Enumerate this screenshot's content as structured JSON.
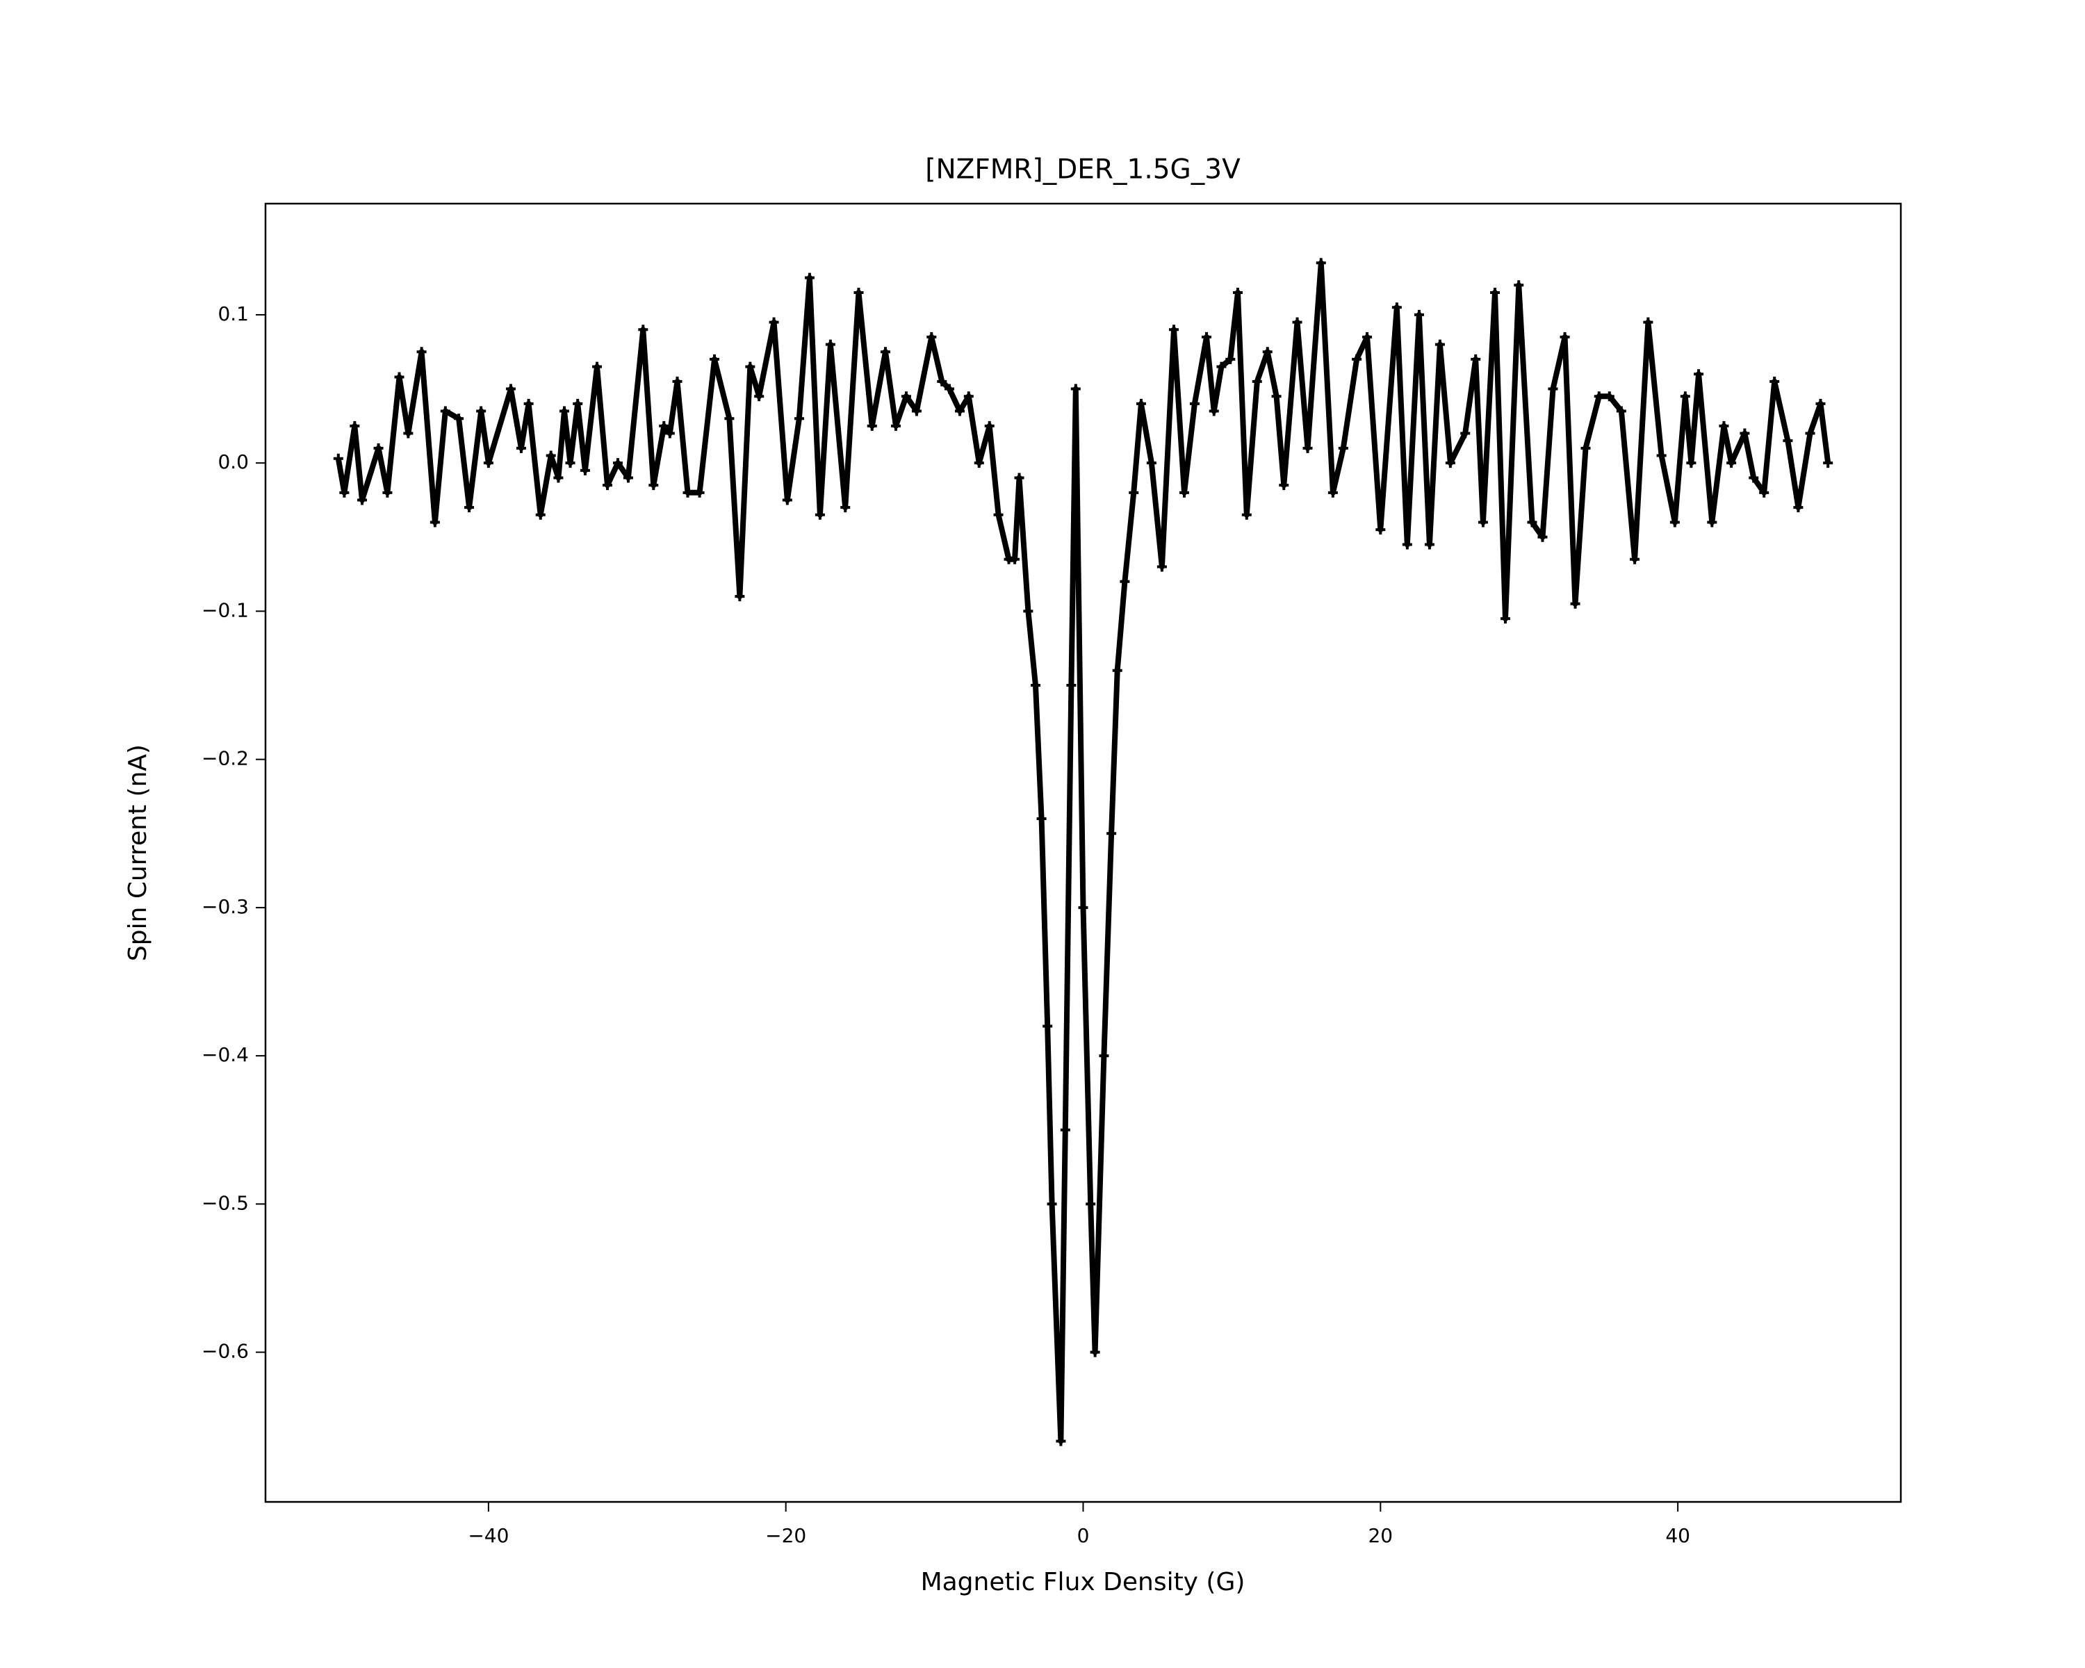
{
  "chart_data": {
    "type": "line",
    "title": "[NZFMR]_DER_1.5G_3V",
    "x_label": "Magnetic Flux Density (G)",
    "y_label": "Spin Current (nA)",
    "color": "#000000",
    "marker": "+",
    "xlim": [
      -55,
      55
    ],
    "ylim": [
      -0.701,
      0.175
    ],
    "xticks": [
      {
        "value": -40,
        "label": "−40"
      },
      {
        "value": -20,
        "label": "−20"
      },
      0,
      20,
      40
    ],
    "yticks": [
      {
        "value": -0.6,
        "label": "−0.6"
      },
      {
        "value": -0.5,
        "label": "−0.5"
      },
      {
        "value": -0.4,
        "label": "−0.4"
      },
      {
        "value": -0.3,
        "label": "−0.3"
      },
      {
        "value": -0.2,
        "label": "−0.2"
      },
      {
        "value": -0.1,
        "label": "−0.1"
      },
      {
        "value": 0,
        "label": "0.0"
      },
      0.1
    ],
    "x": [
      -50.1,
      -49.7,
      -49.0,
      -48.5,
      -47.4,
      -46.8,
      -46.0,
      -45.4,
      -44.5,
      -43.6,
      -42.9,
      -42.0,
      -41.3,
      -40.5,
      -40.0,
      -38.5,
      -37.8,
      -37.3,
      -36.5,
      -35.8,
      -35.3,
      -34.9,
      -34.5,
      -34.0,
      -33.5,
      -32.7,
      -32.0,
      -31.3,
      -30.6,
      -29.6,
      -28.9,
      -28.2,
      -27.8,
      -27.3,
      -26.6,
      -25.8,
      -24.8,
      -23.8,
      -23.1,
      -22.4,
      -21.8,
      -20.8,
      -19.9,
      -19.1,
      -18.4,
      -17.7,
      -17.0,
      -16.0,
      -15.1,
      -14.2,
      -13.3,
      -12.6,
      -11.9,
      -11.2,
      -10.2,
      -9.5,
      -9.0,
      -8.3,
      -7.7,
      -7.0,
      -6.3,
      -5.7,
      -5.0,
      -4.6,
      -4.3,
      -3.7,
      -3.2,
      -2.8,
      -2.4,
      -2.1,
      -1.5,
      -1.2,
      -0.8,
      -0.5,
      0.0,
      0.5,
      0.8,
      1.4,
      1.9,
      2.3,
      2.8,
      3.4,
      3.9,
      4.6,
      5.3,
      6.1,
      6.8,
      7.5,
      8.3,
      8.8,
      9.3,
      9.9,
      10.4,
      11.0,
      11.7,
      12.4,
      13.0,
      13.5,
      14.4,
      15.1,
      16.0,
      16.8,
      17.5,
      18.4,
      19.1,
      20.0,
      21.1,
      21.8,
      22.6,
      23.3,
      24.0,
      24.7,
      25.7,
      26.4,
      26.9,
      27.7,
      28.4,
      29.3,
      30.2,
      30.9,
      31.6,
      32.4,
      33.1,
      33.8,
      34.7,
      35.4,
      36.2,
      37.1,
      38.0,
      38.9,
      39.8,
      40.5,
      40.9,
      41.4,
      42.3,
      43.1,
      43.6,
      44.5,
      45.1,
      45.8,
      46.5,
      47.4,
      48.1,
      48.9,
      49.6,
      50.1
    ],
    "values": [
      0.003,
      -0.02,
      0.025,
      -0.025,
      0.01,
      -0.02,
      0.058,
      0.02,
      0.075,
      -0.04,
      0.035,
      0.03,
      -0.03,
      0.035,
      0.0,
      0.05,
      0.01,
      0.04,
      -0.035,
      0.005,
      -0.01,
      0.035,
      0.0,
      0.04,
      -0.005,
      0.065,
      -0.015,
      0.0,
      -0.01,
      0.09,
      -0.015,
      0.025,
      0.02,
      0.055,
      -0.02,
      -0.02,
      0.07,
      0.03,
      -0.09,
      0.065,
      0.045,
      0.095,
      -0.025,
      0.03,
      0.125,
      -0.035,
      0.08,
      -0.03,
      0.115,
      0.025,
      0.075,
      0.025,
      0.045,
      0.035,
      0.085,
      0.055,
      0.05,
      0.035,
      0.045,
      0.0,
      0.025,
      -0.035,
      -0.065,
      -0.065,
      -0.01,
      -0.1,
      -0.15,
      -0.24,
      -0.38,
      -0.5,
      -0.66,
      -0.45,
      -0.15,
      0.05,
      -0.3,
      -0.5,
      -0.6,
      -0.4,
      -0.25,
      -0.14,
      -0.08,
      -0.02,
      0.04,
      0.0,
      -0.07,
      0.09,
      -0.02,
      0.04,
      0.085,
      0.035,
      0.065,
      0.07,
      0.115,
      -0.035,
      0.055,
      0.075,
      0.045,
      -0.015,
      0.095,
      0.01,
      0.135,
      -0.02,
      0.01,
      0.07,
      0.085,
      -0.045,
      0.105,
      -0.055,
      0.1,
      -0.055,
      0.08,
      0.0,
      0.02,
      0.07,
      -0.04,
      0.115,
      -0.105,
      0.12,
      -0.04,
      -0.05,
      0.05,
      0.085,
      -0.095,
      0.01,
      0.045,
      0.045,
      0.035,
      -0.065,
      0.095,
      0.005,
      -0.04,
      0.045,
      0.0,
      0.06,
      -0.04,
      0.025,
      0.0,
      0.02,
      -0.01,
      -0.02,
      0.055,
      0.015,
      -0.03,
      0.02,
      0.04,
      0.0
    ]
  }
}
